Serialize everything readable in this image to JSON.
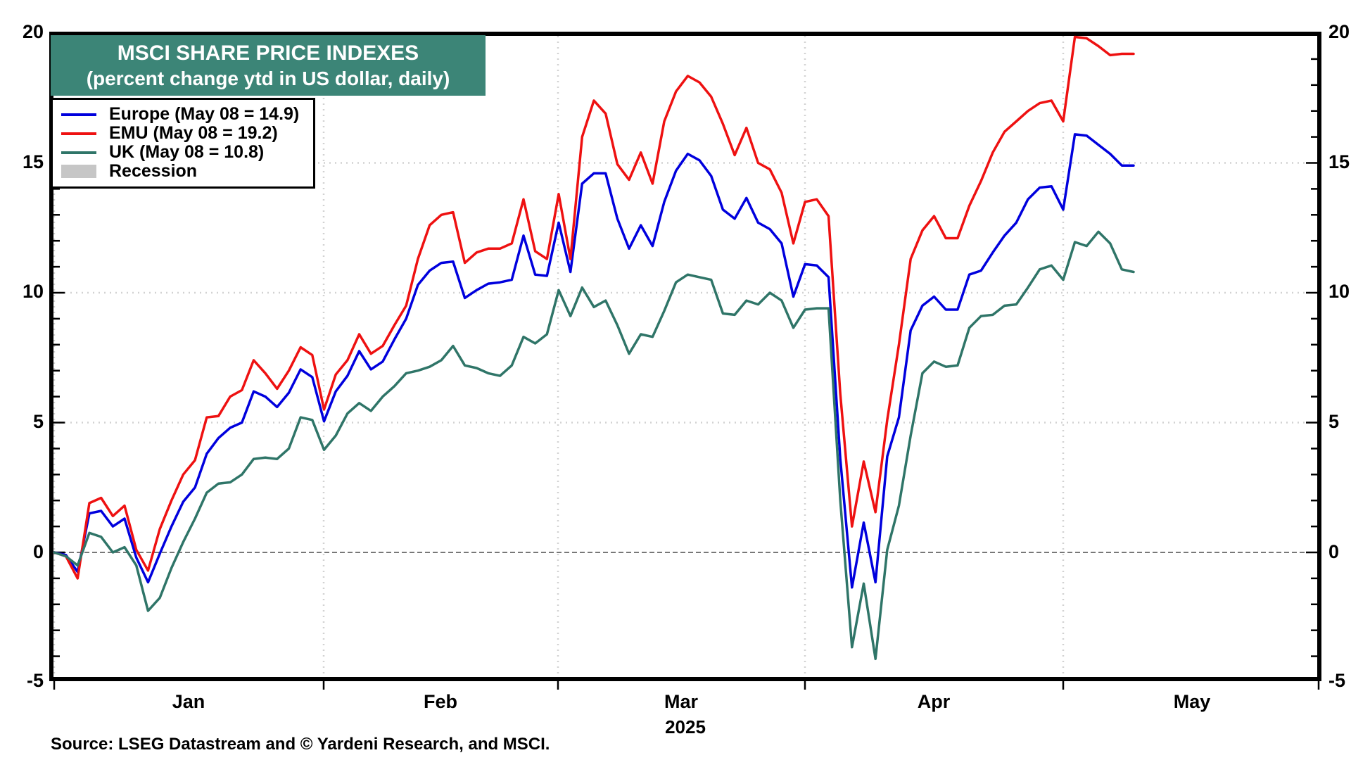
{
  "title": {
    "line1": "MSCI SHARE PRICE INDEXES",
    "line2": "(percent change ytd in US dollar, daily)"
  },
  "colors": {
    "title_bg": "#3c8577",
    "europe_line": "#0000dd",
    "emu_line": "#ee1111",
    "uk_line": "#2f7568",
    "recession_fill": "#c6c6c6",
    "grid": "#d2d2d2",
    "zero_line": "#787878"
  },
  "legend": [
    {
      "label": "Europe (May 08 = 14.9)",
      "color": "#0000dd",
      "type": "line"
    },
    {
      "label": "EMU (May 08 = 19.2)",
      "color": "#ee1111",
      "type": "line"
    },
    {
      "label": "UK (May 08 = 10.8)",
      "color": "#2f7568",
      "type": "line"
    },
    {
      "label": "Recession",
      "color": "#c6c6c6",
      "type": "area"
    }
  ],
  "axes": {
    "y_tick_labels": [
      "20",
      "15",
      "10",
      "5",
      "0",
      "-5"
    ],
    "month_labels": [
      "Jan",
      "Feb",
      "Mar",
      "Apr",
      "May"
    ],
    "year_label": "2025"
  },
  "source": "Source: LSEG Datastream and © Yardeni Research, and MSCI.",
  "chart_data": {
    "type": "line",
    "title": "MSCI SHARE PRICE INDEXES (percent change ytd in US dollar, daily)",
    "xlabel": "",
    "ylabel": "percent change ytd in US dollar",
    "ylim": [
      -5,
      20
    ],
    "y_ticks": [
      -5,
      0,
      5,
      10,
      15,
      20
    ],
    "x_axis": {
      "months": [
        "Jan",
        "Feb",
        "Mar",
        "Apr",
        "May"
      ],
      "year": "2025",
      "last_point": "May 08"
    },
    "grid": true,
    "legend_position": "top-left",
    "series": [
      {
        "name": "Europe",
        "color": "#0000dd",
        "final_value": 14.9,
        "values": [
          0,
          -0.1,
          -0.75,
          1.5,
          1.6,
          1,
          1.3,
          -0.2,
          -1.15,
          -0.05,
          1,
          1.95,
          2.5,
          3.8,
          4.4,
          4.8,
          5,
          6.2,
          6,
          5.6,
          6.15,
          7.05,
          6.75,
          5.05,
          6.2,
          6.8,
          7.75,
          7.05,
          7.35,
          8.2,
          9,
          10.3,
          10.85,
          11.15,
          11.2,
          9.8,
          10.1,
          10.35,
          10.4,
          10.5,
          12.2,
          10.7,
          10.65,
          12.7,
          10.8,
          14.2,
          14.6,
          14.6,
          12.85,
          11.7,
          12.6,
          11.8,
          13.5,
          14.7,
          15.35,
          15.1,
          14.5,
          13.2,
          12.85,
          13.65,
          12.7,
          12.45,
          11.9,
          9.85,
          11.1,
          11.05,
          10.6,
          3.6,
          -1.35,
          1.15,
          -1.15,
          3.7,
          5.2,
          8.55,
          9.5,
          9.85,
          9.35,
          9.35,
          10.7,
          10.85,
          11.55,
          12.2,
          12.7,
          13.6,
          14.05,
          14.1,
          13.2,
          16.1,
          16.05,
          15.7,
          15.35,
          14.9,
          14.9
        ]
      },
      {
        "name": "EMU",
        "color": "#ee1111",
        "final_value": 19.2,
        "values": [
          0,
          -0.15,
          -1,
          1.9,
          2.1,
          1.4,
          1.8,
          0.1,
          -0.7,
          0.9,
          2,
          3,
          3.55,
          5.2,
          5.25,
          6,
          6.25,
          7.4,
          6.9,
          6.3,
          7,
          7.9,
          7.6,
          5.5,
          6.85,
          7.4,
          8.4,
          7.65,
          7.95,
          8.75,
          9.5,
          11.3,
          12.6,
          13,
          13.1,
          11.15,
          11.55,
          11.7,
          11.7,
          11.9,
          13.6,
          11.6,
          11.3,
          13.8,
          11.3,
          16,
          17.4,
          16.9,
          14.95,
          14.35,
          15.4,
          14.2,
          16.6,
          17.75,
          18.35,
          18.1,
          17.55,
          16.5,
          15.3,
          16.35,
          15,
          14.75,
          13.85,
          11.9,
          13.5,
          13.6,
          12.95,
          6.1,
          1,
          3.5,
          1.55,
          5.1,
          8,
          11.3,
          12.4,
          12.95,
          12.1,
          12.1,
          13.35,
          14.3,
          15.4,
          16.2,
          16.6,
          17,
          17.3,
          17.4,
          16.6,
          19.85,
          19.8,
          19.5,
          19.15,
          19.2,
          19.2
        ]
      },
      {
        "name": "UK",
        "color": "#2f7568",
        "final_value": 10.8,
        "values": [
          0,
          -0.15,
          -0.5,
          0.75,
          0.6,
          0,
          0.2,
          -0.5,
          -2.25,
          -1.75,
          -0.6,
          0.4,
          1.3,
          2.3,
          2.65,
          2.7,
          3,
          3.6,
          3.65,
          3.6,
          4,
          5.2,
          5.1,
          3.95,
          4.5,
          5.35,
          5.75,
          5.45,
          6,
          6.4,
          6.9,
          7,
          7.15,
          7.4,
          7.95,
          7.2,
          7.1,
          6.9,
          6.8,
          7.2,
          8.3,
          8.05,
          8.4,
          10.1,
          9.1,
          10.2,
          9.45,
          9.7,
          8.75,
          7.65,
          8.4,
          8.3,
          9.3,
          10.4,
          10.7,
          10.6,
          10.5,
          9.2,
          9.15,
          9.7,
          9.55,
          10,
          9.7,
          8.65,
          9.35,
          9.4,
          9.4,
          2,
          -3.65,
          -1.2,
          -4.1,
          0.1,
          1.8,
          4.5,
          6.9,
          7.35,
          7.15,
          7.2,
          8.65,
          9.1,
          9.15,
          9.5,
          9.55,
          10.2,
          10.9,
          11.05,
          10.5,
          11.95,
          11.8,
          12.35,
          11.9,
          10.9,
          10.8
        ]
      }
    ]
  }
}
